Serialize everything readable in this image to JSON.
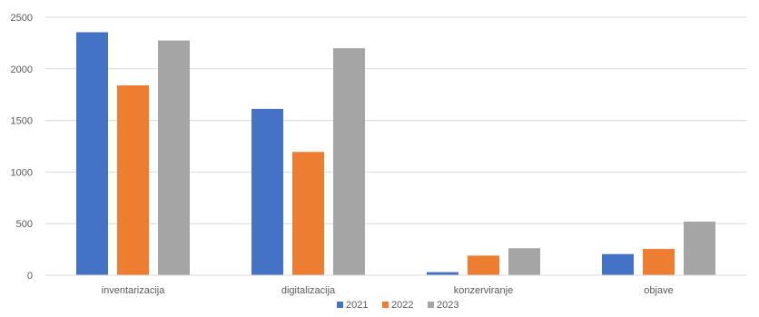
{
  "chart_data": {
    "type": "bar",
    "title": "",
    "xlabel": "",
    "ylabel": "",
    "categories": [
      "inventarizacija",
      "digitalizacija",
      "konzerviranje",
      "objave"
    ],
    "series": [
      {
        "name": "2021",
        "color": "#4472C4",
        "values": [
          2355,
          1612,
          30,
          205
        ]
      },
      {
        "name": "2022",
        "color": "#ED7D31",
        "values": [
          1840,
          1195,
          190,
          255
        ]
      },
      {
        "name": "2023",
        "color": "#A5A5A5",
        "values": [
          2275,
          2200,
          262,
          520
        ]
      }
    ],
    "ylim": [
      0,
      2500
    ],
    "yticks": [
      "0",
      "500",
      "1000",
      "1500",
      "2000",
      "2500"
    ],
    "grid": true,
    "legend_position": "bottom"
  }
}
